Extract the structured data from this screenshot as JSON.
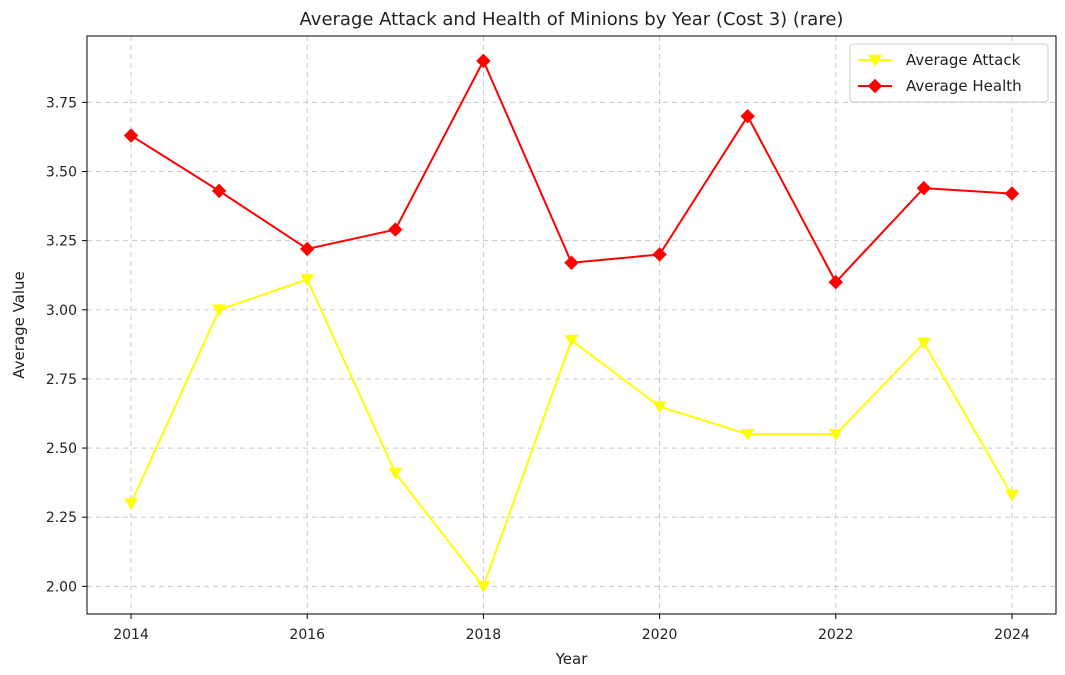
{
  "chart_data": {
    "type": "line",
    "title": "Average Attack and Health of Minions by Year (Cost 3) (rare)",
    "xlabel": "Year",
    "ylabel": "Average Value",
    "x": [
      2014,
      2015,
      2016,
      2017,
      2018,
      2019,
      2020,
      2021,
      2022,
      2023,
      2024
    ],
    "xlim": [
      2013.5,
      2024.5
    ],
    "ylim": [
      1.9,
      3.99
    ],
    "xticks": [
      2014,
      2016,
      2018,
      2020,
      2022,
      2024
    ],
    "yticks": [
      2.0,
      2.25,
      2.5,
      2.75,
      3.0,
      3.25,
      3.5,
      3.75
    ],
    "xtick_labels": [
      "2014",
      "2016",
      "2018",
      "2020",
      "2022",
      "2024"
    ],
    "ytick_labels": [
      "2.00",
      "2.25",
      "2.50",
      "2.75",
      "3.00",
      "3.25",
      "3.50",
      "3.75"
    ],
    "grid": true,
    "legend_position": "top-right",
    "series": [
      {
        "name": "Average Attack",
        "color": "#ffff00",
        "marker": "triangle-down",
        "values": [
          2.3,
          3.0,
          3.11,
          2.41,
          2.0,
          2.89,
          2.65,
          2.55,
          2.55,
          2.88,
          2.33
        ]
      },
      {
        "name": "Average Health",
        "color": "#ff0000",
        "marker": "diamond",
        "values": [
          3.63,
          3.43,
          3.22,
          3.29,
          3.9,
          3.17,
          3.2,
          3.7,
          3.1,
          3.44,
          3.42
        ]
      }
    ]
  }
}
